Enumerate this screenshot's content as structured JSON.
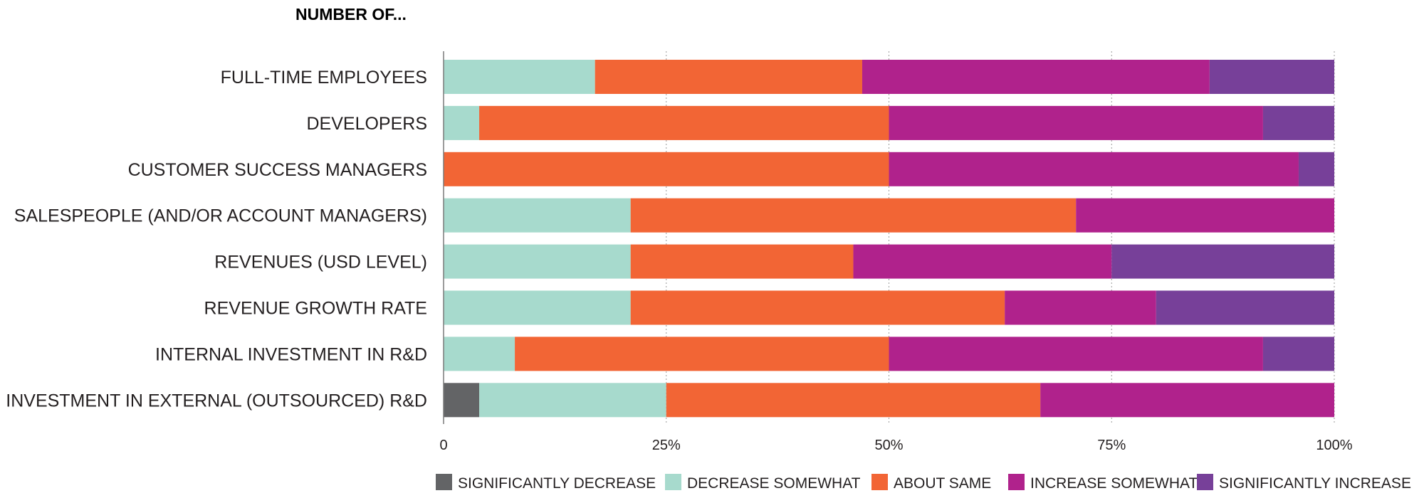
{
  "chart_data": {
    "type": "bar",
    "orientation": "horizontal",
    "stacked": true,
    "normalized": true,
    "title": "NUMBER OF...",
    "categories": [
      "FULL-TIME EMPLOYEES",
      "DEVELOPERS",
      "CUSTOMER SUCCESS MANAGERS",
      "SALESPEOPLE (AND/OR ACCOUNT MANAGERS)",
      "REVENUES (USD LEVEL)",
      "REVENUE GROWTH RATE",
      "INTERNAL INVESTMENT IN R&D",
      "INVESTMENT IN EXTERNAL (OUTSOURCED) R&D"
    ],
    "series": [
      {
        "name": "SIGNIFICANTLY DECREASE",
        "color": "#636466",
        "values": [
          0,
          0,
          0,
          0,
          0,
          0,
          0,
          4
        ]
      },
      {
        "name": "DECREASE SOMEWHAT",
        "color": "#a7dacd",
        "values": [
          17,
          4,
          0,
          21,
          21,
          21,
          8,
          21
        ]
      },
      {
        "name": "ABOUT SAME",
        "color": "#f26535",
        "values": [
          30,
          46,
          50,
          50,
          25,
          42,
          42,
          42
        ]
      },
      {
        "name": "INCREASE SOMEWHAT",
        "color": "#b0228c",
        "values": [
          39,
          42,
          46,
          29,
          29,
          17,
          42,
          33
        ]
      },
      {
        "name": "SIGNIFICANTLY INCREASE",
        "color": "#774099",
        "values": [
          14,
          8,
          4,
          0,
          25,
          20,
          8,
          0
        ]
      }
    ],
    "x_ticks": [
      "0",
      "25%",
      "50%",
      "75%",
      "100%"
    ],
    "xlim": [
      0,
      100
    ],
    "grid": "vertical dashed",
    "legend": "bottom"
  }
}
